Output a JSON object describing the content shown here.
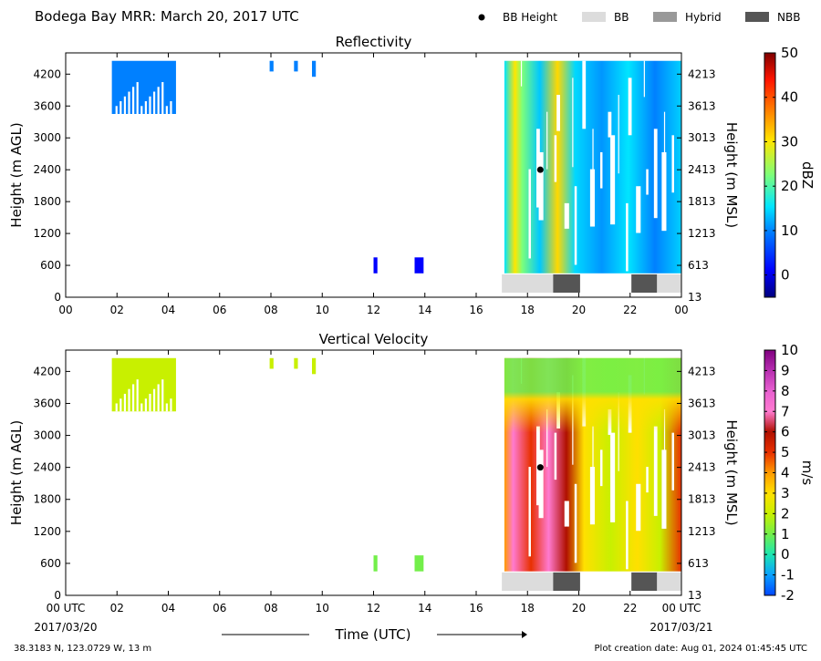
{
  "header": {
    "title": "Bodega Bay MRR:  March 20, 2017 UTC",
    "legend": [
      {
        "label": "BB Height",
        "kind": "dot",
        "color": "#000000"
      },
      {
        "label": "BB",
        "kind": "swatch",
        "color": "#dcdcdc"
      },
      {
        "label": "Hybrid",
        "kind": "swatch",
        "color": "#999999"
      },
      {
        "label": "NBB",
        "kind": "swatch",
        "color": "#555555"
      }
    ]
  },
  "footer": {
    "location": "38.3183 N, 123.0729 W, 13 m",
    "creation": "Plot creation date: Aug 01, 2024 01:45:45 UTC",
    "x_start_label": "00 UTC",
    "x_start_date": "2017/03/20",
    "x_end_label": "00 UTC",
    "x_end_date": "2017/03/21"
  },
  "chart_data": [
    {
      "type": "heatmap",
      "title": "Reflectivity",
      "xlabel": "Time (UTC)",
      "ylabel": "Height (m AGL)",
      "y2label": "Height (m MSL)",
      "xlim": [
        0,
        24
      ],
      "ylim": [
        0,
        4600
      ],
      "x_ticks": [
        "00",
        "02",
        "04",
        "06",
        "08",
        "10",
        "12",
        "14",
        "16",
        "18",
        "20",
        "22",
        "00"
      ],
      "y_ticks": [
        0,
        600,
        1200,
        1800,
        2400,
        3000,
        3600,
        4200
      ],
      "y2_ticks": [
        13,
        613,
        1213,
        1813,
        2413,
        3013,
        3613,
        4213
      ],
      "colorbar": {
        "label": "dBZ",
        "range": [
          -5,
          50
        ],
        "ticks": [
          0,
          10,
          20,
          30,
          40,
          50
        ],
        "colormap": "jet"
      },
      "echo_regions": [
        {
          "t0": 1.8,
          "t1": 4.3,
          "h0": 3450,
          "h1": 4450,
          "value": 8
        },
        {
          "t0": 7.95,
          "t1": 8.1,
          "h0": 4250,
          "h1": 4450,
          "value": 8
        },
        {
          "t0": 8.9,
          "t1": 9.05,
          "h0": 4250,
          "h1": 4450,
          "value": 8
        },
        {
          "t0": 9.6,
          "t1": 9.75,
          "h0": 4150,
          "h1": 4450,
          "value": 8
        },
        {
          "t0": 12.0,
          "t1": 12.15,
          "h0": 450,
          "h1": 750,
          "value": 2
        },
        {
          "t0": 13.6,
          "t1": 13.95,
          "h0": 450,
          "h1": 750,
          "value": 3
        },
        {
          "t0": 17.1,
          "t1": 24.0,
          "h0": 450,
          "h1": 4450,
          "value": 15
        }
      ],
      "bb_height": [
        {
          "time": 18.5,
          "height": 2400
        }
      ],
      "bb_type": [
        {
          "t0": 17.0,
          "t1": 19.0,
          "type": "BB"
        },
        {
          "t0": 19.0,
          "t1": 20.05,
          "type": "NBB"
        },
        {
          "t0": 22.05,
          "t1": 23.05,
          "type": "NBB"
        },
        {
          "t0": 23.05,
          "t1": 24.0,
          "type": "BB"
        }
      ]
    },
    {
      "type": "heatmap",
      "title": "Vertical Velocity",
      "xlabel": "Time (UTC)",
      "ylabel": "Height (m AGL)",
      "y2label": "Height (m MSL)",
      "xlim": [
        0,
        24
      ],
      "ylim": [
        0,
        4600
      ],
      "x_ticks": [
        "00 UTC",
        "02",
        "04",
        "06",
        "08",
        "10",
        "12",
        "14",
        "16",
        "18",
        "20",
        "22",
        "00 UTC"
      ],
      "y_ticks": [
        0,
        600,
        1200,
        1800,
        2400,
        3000,
        3600,
        4200
      ],
      "y2_ticks": [
        13,
        613,
        1213,
        1813,
        2413,
        3013,
        3613,
        4213
      ],
      "colorbar": {
        "label": "m/s",
        "range": [
          -2,
          10
        ],
        "ticks": [
          -2,
          -1,
          0,
          1,
          2,
          3,
          4,
          5,
          6,
          7,
          8,
          9,
          10
        ],
        "colormap": "velocity"
      },
      "echo_regions": [
        {
          "t0": 1.8,
          "t1": 4.3,
          "h0": 3450,
          "h1": 4450,
          "value": 1.5
        },
        {
          "t0": 7.95,
          "t1": 8.1,
          "h0": 4250,
          "h1": 4450,
          "value": 1.5
        },
        {
          "t0": 8.9,
          "t1": 9.05,
          "h0": 4250,
          "h1": 4450,
          "value": 1.5
        },
        {
          "t0": 9.6,
          "t1": 9.75,
          "h0": 4150,
          "h1": 4450,
          "value": 1.5
        },
        {
          "t0": 12.0,
          "t1": 12.15,
          "h0": 450,
          "h1": 750,
          "value": 0.8
        },
        {
          "t0": 13.6,
          "t1": 13.95,
          "h0": 450,
          "h1": 750,
          "value": 0.8
        },
        {
          "t0": 17.1,
          "t1": 24.0,
          "h0": 450,
          "h1": 4450,
          "value": 4
        }
      ],
      "bb_height": [
        {
          "time": 18.5,
          "height": 2400
        }
      ],
      "bb_type": [
        {
          "t0": 17.0,
          "t1": 19.0,
          "type": "BB"
        },
        {
          "t0": 19.0,
          "t1": 20.05,
          "type": "NBB"
        },
        {
          "t0": 22.05,
          "t1": 23.05,
          "type": "NBB"
        },
        {
          "t0": 23.05,
          "t1": 24.0,
          "type": "BB"
        }
      ]
    }
  ]
}
